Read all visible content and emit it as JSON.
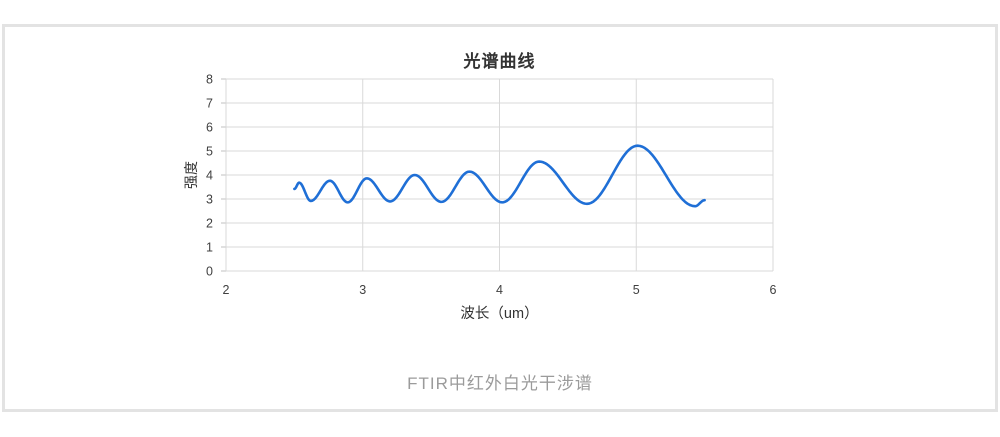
{
  "page": {
    "background": "#ffffff",
    "panel_border_color": "#e3e3e3"
  },
  "figure_caption": "FTIR中红外白光干涉谱",
  "chart_data": {
    "type": "line",
    "title": "光谱曲线",
    "xlabel": "波长（um）",
    "ylabel": "强度",
    "xlim": [
      2,
      6
    ],
    "ylim": [
      0,
      8
    ],
    "x_ticks": [
      2,
      3,
      4,
      5,
      6
    ],
    "y_ticks": [
      0,
      1,
      2,
      3,
      4,
      5,
      6,
      7,
      8
    ],
    "grid": true,
    "legend": "none",
    "line_color": "#1f6fd6",
    "grid_color": "#d9d9d9",
    "tick_mark_color": "#c0c0c0",
    "tick_text_color": "#404040",
    "axis_title_color": "#333333",
    "interpolation": "cosine-through-extrema",
    "series": [
      {
        "name": "光谱曲线",
        "points": [
          [
            2.5,
            3.42
          ],
          [
            2.535,
            3.68
          ],
          [
            2.62,
            2.92
          ],
          [
            2.76,
            3.76
          ],
          [
            2.89,
            2.86
          ],
          [
            3.03,
            3.86
          ],
          [
            3.2,
            2.9
          ],
          [
            3.38,
            4.0
          ],
          [
            3.575,
            2.88
          ],
          [
            3.78,
            4.14
          ],
          [
            4.02,
            2.86
          ],
          [
            4.29,
            4.56
          ],
          [
            4.64,
            2.8
          ],
          [
            5.01,
            5.22
          ],
          [
            5.43,
            2.7
          ],
          [
            5.5,
            2.95
          ]
        ]
      }
    ]
  }
}
